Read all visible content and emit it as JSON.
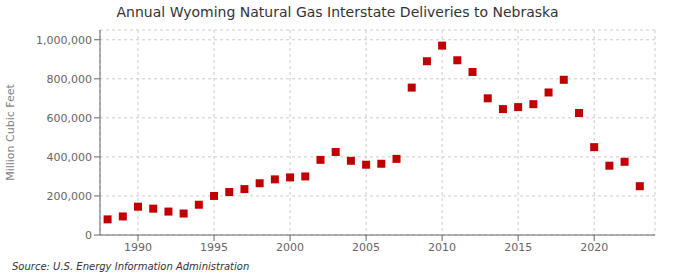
{
  "chart_data": {
    "type": "scatter",
    "title": "Annual Wyoming Natural Gas Interstate Deliveries to Nebraska",
    "ylabel": "Million Cubic Feet",
    "source": "Source: U.S. Energy Information Administration",
    "x": [
      1988,
      1989,
      1990,
      1991,
      1992,
      1993,
      1994,
      1995,
      1996,
      1997,
      1998,
      1999,
      2000,
      2001,
      2002,
      2003,
      2004,
      2005,
      2006,
      2007,
      2008,
      2009,
      2010,
      2011,
      2012,
      2013,
      2014,
      2015,
      2016,
      2017,
      2018,
      2019,
      2020,
      2021,
      2022,
      2023
    ],
    "values": [
      80000,
      95000,
      145000,
      135000,
      120000,
      110000,
      155000,
      200000,
      220000,
      235000,
      265000,
      285000,
      295000,
      300000,
      385000,
      425000,
      380000,
      360000,
      365000,
      390000,
      755000,
      890000,
      970000,
      895000,
      835000,
      700000,
      645000,
      655000,
      670000,
      730000,
      795000,
      625000,
      450000,
      355000,
      375000,
      250000
    ],
    "color": "#c00000",
    "marker": "square",
    "xlim": [
      1987.5,
      2024
    ],
    "xticks": [
      1990,
      1995,
      2000,
      2005,
      2010,
      2015,
      2020
    ],
    "ylim": [
      0,
      1050000
    ],
    "yticks": [
      0,
      {
        "value": 200000,
        "label": "200,000"
      },
      {
        "value": 400000,
        "label": "400,000"
      },
      {
        "value": 600000,
        "label": "600,000"
      },
      {
        "value": 800000,
        "label": "800,000"
      },
      {
        "value": 1000000,
        "label": "1,000,000"
      }
    ],
    "grid": true
  }
}
